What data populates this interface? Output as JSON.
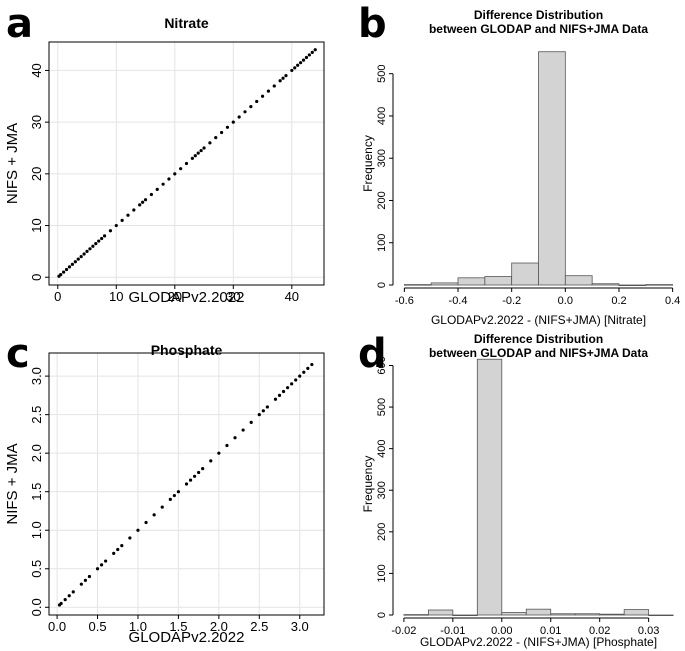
{
  "panel_labels": [
    "a",
    "b",
    "c",
    "d"
  ],
  "chart_data": [
    {
      "type": "scatter",
      "panel": "a",
      "title": "Nitrate",
      "xlabel": "GLODAPv2.2022",
      "ylabel": "NIFS + JMA",
      "xlim": [
        -1.5,
        45.5
      ],
      "ylim": [
        -1.5,
        45.5
      ],
      "xticks": [
        0,
        10,
        20,
        30,
        40
      ],
      "yticks": [
        0,
        10,
        20,
        30,
        40
      ],
      "grid": true,
      "x": [
        0.2,
        0.5,
        1.0,
        1.5,
        2.0,
        2.5,
        3.0,
        3.5,
        4.0,
        4.5,
        5.0,
        5.5,
        6.0,
        6.5,
        7.0,
        7.5,
        8.0,
        9.0,
        10.0,
        11.0,
        12.0,
        13.0,
        14.0,
        14.5,
        15.0,
        16.0,
        17.0,
        18.0,
        19.0,
        20.0,
        21.0,
        22.0,
        23.0,
        23.5,
        24.0,
        24.5,
        25.0,
        26.0,
        27.0,
        28.0,
        29.0,
        30.0,
        31.0,
        32.0,
        33.0,
        34.0,
        35.0,
        36.0,
        37.0,
        38.0,
        38.5,
        39.0,
        40.0,
        40.5,
        41.0,
        41.5,
        42.0,
        42.5,
        43.0,
        43.5,
        44.0
      ],
      "y": [
        0.2,
        0.5,
        1.0,
        1.5,
        2.0,
        2.5,
        3.0,
        3.5,
        4.0,
        4.5,
        5.0,
        5.5,
        6.0,
        6.5,
        7.0,
        7.5,
        8.0,
        9.0,
        10.0,
        11.0,
        12.0,
        13.0,
        14.0,
        14.5,
        15.0,
        16.0,
        17.0,
        18.0,
        19.0,
        20.0,
        21.0,
        22.0,
        23.0,
        23.5,
        24.0,
        24.5,
        25.0,
        26.0,
        27.0,
        28.0,
        29.0,
        30.0,
        31.0,
        32.0,
        33.0,
        34.0,
        35.0,
        36.0,
        37.0,
        38.0,
        38.5,
        39.0,
        40.0,
        40.5,
        41.0,
        41.5,
        42.0,
        42.5,
        43.0,
        43.5,
        44.0
      ]
    },
    {
      "type": "bar",
      "panel": "b",
      "title": "Difference Distribution\nbetween GLODAP and NIFS+JMA Data",
      "xlabel": "GLODAPv2.2022 - (NIFS+JMA) [Nitrate]",
      "ylabel": "Frequency",
      "bin_edges": [
        -0.6,
        -0.5,
        -0.4,
        -0.3,
        -0.2,
        -0.1,
        0.0,
        0.1,
        0.2,
        0.3,
        0.4
      ],
      "values": [
        1,
        5,
        17,
        20,
        52,
        552,
        22,
        3,
        0,
        1
      ],
      "xlim": [
        -0.62,
        0.42
      ],
      "ylim": [
        0,
        575
      ],
      "xticks": [
        -0.6,
        -0.4,
        -0.2,
        0.0,
        0.2,
        0.4
      ],
      "xticklabels": [
        "-0.6",
        "-0.4",
        "-0.2",
        "0.0",
        "0.2",
        "0.4"
      ],
      "yticks": [
        0,
        100,
        200,
        300,
        400,
        500
      ],
      "grid": false
    },
    {
      "type": "scatter",
      "panel": "c",
      "title": "Phosphate",
      "xlabel": "GLODAPv2.2022",
      "ylabel": "NIFS + JMA",
      "xlim": [
        -0.1,
        3.3
      ],
      "ylim": [
        -0.1,
        3.3
      ],
      "xticks": [
        0.0,
        0.5,
        1.0,
        1.5,
        2.0,
        2.5,
        3.0
      ],
      "yticks": [
        0.0,
        0.5,
        1.0,
        1.5,
        2.0,
        2.5,
        3.0
      ],
      "grid": true,
      "x": [
        0.03,
        0.05,
        0.1,
        0.15,
        0.2,
        0.3,
        0.35,
        0.4,
        0.5,
        0.55,
        0.6,
        0.7,
        0.75,
        0.8,
        0.9,
        1.0,
        1.1,
        1.2,
        1.3,
        1.4,
        1.45,
        1.5,
        1.6,
        1.65,
        1.7,
        1.75,
        1.8,
        1.9,
        2.0,
        2.1,
        2.2,
        2.3,
        2.4,
        2.5,
        2.55,
        2.6,
        2.7,
        2.75,
        2.8,
        2.85,
        2.9,
        2.95,
        3.0,
        3.05,
        3.1,
        3.15
      ],
      "y": [
        0.03,
        0.05,
        0.1,
        0.15,
        0.2,
        0.3,
        0.35,
        0.4,
        0.5,
        0.55,
        0.6,
        0.7,
        0.75,
        0.8,
        0.9,
        1.0,
        1.1,
        1.2,
        1.3,
        1.4,
        1.45,
        1.5,
        1.6,
        1.65,
        1.7,
        1.75,
        1.8,
        1.9,
        2.0,
        2.1,
        2.2,
        2.3,
        2.4,
        2.5,
        2.55,
        2.6,
        2.7,
        2.75,
        2.8,
        2.85,
        2.9,
        2.95,
        3.0,
        3.05,
        3.1,
        3.15
      ]
    },
    {
      "type": "bar",
      "panel": "d",
      "title": "Difference Distribution\nbetween GLODAP and NIFS+JMA Data",
      "xlabel": "GLODAPv2.2022 - (NIFS+JMA) [Phosphate]",
      "ylabel": "Frequency",
      "bin_edges": [
        -0.02,
        -0.015,
        -0.01,
        -0.005,
        0.0,
        0.005,
        0.01,
        0.015,
        0.02,
        0.025,
        0.03,
        0.035
      ],
      "values": [
        1,
        12,
        0,
        615,
        6,
        14,
        3,
        3,
        2,
        13,
        0
      ],
      "xlim": [
        -0.021,
        0.036
      ],
      "ylim": [
        0,
        630
      ],
      "xticks": [
        -0.02,
        -0.01,
        0.0,
        0.01,
        0.02,
        0.03
      ],
      "xticklabels": [
        "-0.02",
        "-0.01",
        "0.00",
        "0.01",
        "0.02",
        "0.03"
      ],
      "yticks": [
        0,
        100,
        200,
        300,
        400,
        500,
        600
      ],
      "grid": false
    }
  ],
  "style": {
    "axis_color": "#000000",
    "grid_color": "#e4e4e4",
    "point_color": "#000000",
    "bar_fill": "#d3d3d3",
    "bar_stroke": "#555555"
  }
}
